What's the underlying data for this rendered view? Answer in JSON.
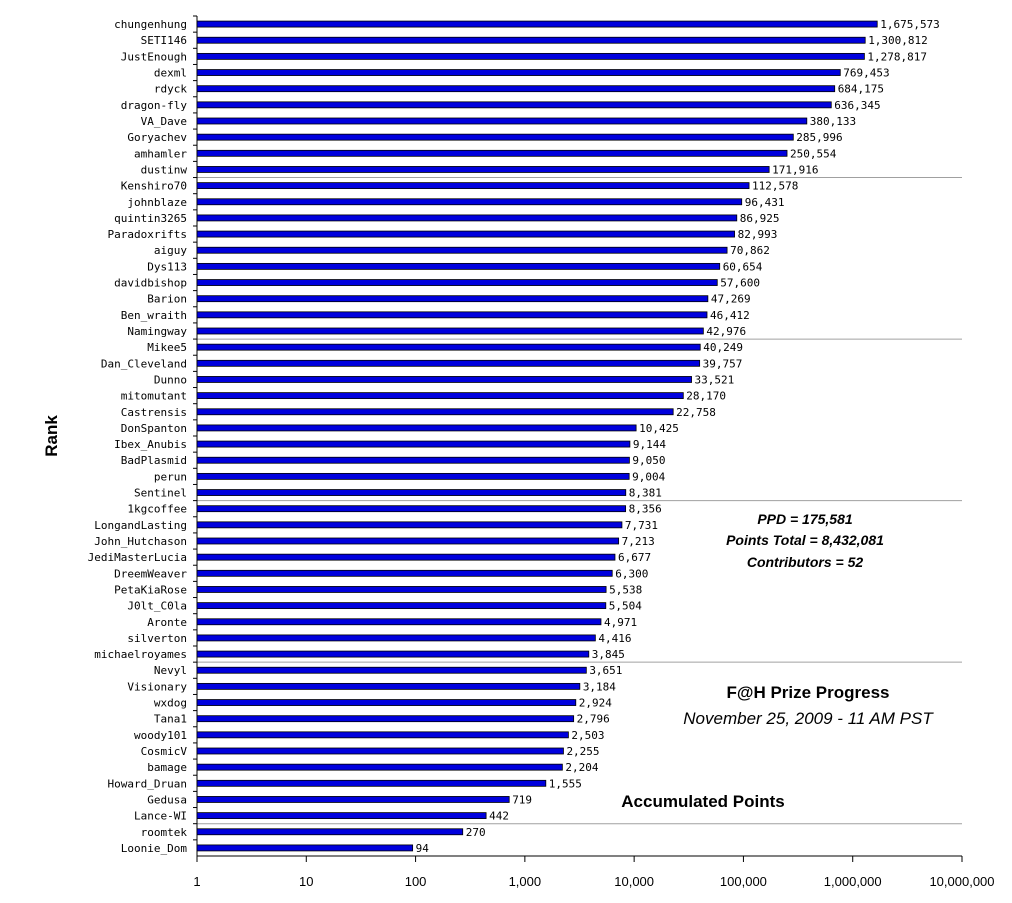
{
  "chart_data": {
    "type": "bar",
    "orientation": "horizontal",
    "x_scale": "log",
    "xlim": [
      1,
      10000000
    ],
    "x_ticks": [
      "1",
      "10",
      "100",
      "1,000",
      "10,000",
      "100,000",
      "1,000,000",
      "10,000,000"
    ],
    "ylabel": "Rank",
    "xlabel": "Accumulated Points",
    "grid": "horizontal every 10 rows",
    "bar_color": "#0000dd",
    "title": "F@H Prize Progress",
    "subtitle": "November 25, 2009 - 11 AM PST",
    "stats": [
      "PPD = 175,581",
      "Points Total = 8,432,081",
      "Contributors = 52"
    ],
    "categories": [
      "chungenhung",
      "SETI146",
      "JustEnough",
      "dexml",
      "rdyck",
      "dragon-fly",
      "VA_Dave",
      "Goryachev",
      "amhamler",
      "dustinw",
      "Kenshiro70",
      "johnblaze",
      "quintin3265",
      "Paradoxrifts",
      "aiguy",
      "Dys113",
      "davidbishop",
      "Barion",
      "Ben_wraith",
      "Namingway",
      "Mikee5",
      "Dan_Cleveland",
      "Dunno",
      "mitomutant",
      "Castrensis",
      "DonSpanton",
      "Ibex_Anubis",
      "BadPlasmid",
      "perun",
      "Sentinel",
      "1kgcoffee",
      "LongandLasting",
      "John_Hutchason",
      "JediMasterLucia",
      "DreemWeaver",
      "PetaKiaRose",
      "J0lt_C0la",
      "Aronte",
      "silverton",
      "michaelroyames",
      "Nevyl",
      "Visionary",
      "wxdog",
      "Tana1",
      "woody101",
      "CosmicV",
      "bamage",
      "Howard_Druan",
      "Gedusa",
      "Lance-WI",
      "roomtek",
      "Loonie_Dom"
    ],
    "values": [
      1675573,
      1300812,
      1278817,
      769453,
      684175,
      636345,
      380133,
      285996,
      250554,
      171916,
      112578,
      96431,
      86925,
      82993,
      70862,
      60654,
      57600,
      47269,
      46412,
      42976,
      40249,
      39757,
      33521,
      28170,
      22758,
      10425,
      9144,
      9050,
      9004,
      8381,
      8356,
      7731,
      7213,
      6677,
      6300,
      5538,
      5504,
      4971,
      4416,
      3845,
      3651,
      3184,
      2924,
      2796,
      2503,
      2255,
      2204,
      1555,
      719,
      442,
      270,
      94
    ],
    "value_labels": [
      "1,675,573",
      "1,300,812",
      "1,278,817",
      "769,453",
      "684,175",
      "636,345",
      "380,133",
      "285,996",
      "250,554",
      "171,916",
      "112,578",
      "96,431",
      "86,925",
      "82,993",
      "70,862",
      "60,654",
      "57,600",
      "47,269",
      "46,412",
      "42,976",
      "40,249",
      "39,757",
      "33,521",
      "28,170",
      "22,758",
      "10,425",
      "9,144",
      "9,050",
      "9,004",
      "8,381",
      "8,356",
      "7,731",
      "7,213",
      "6,677",
      "6,300",
      "5,538",
      "5,504",
      "4,971",
      "4,416",
      "3,845",
      "3,651",
      "3,184",
      "2,924",
      "2,796",
      "2,503",
      "2,255",
      "2,204",
      "1,555",
      "719",
      "442",
      "270",
      "94"
    ]
  }
}
